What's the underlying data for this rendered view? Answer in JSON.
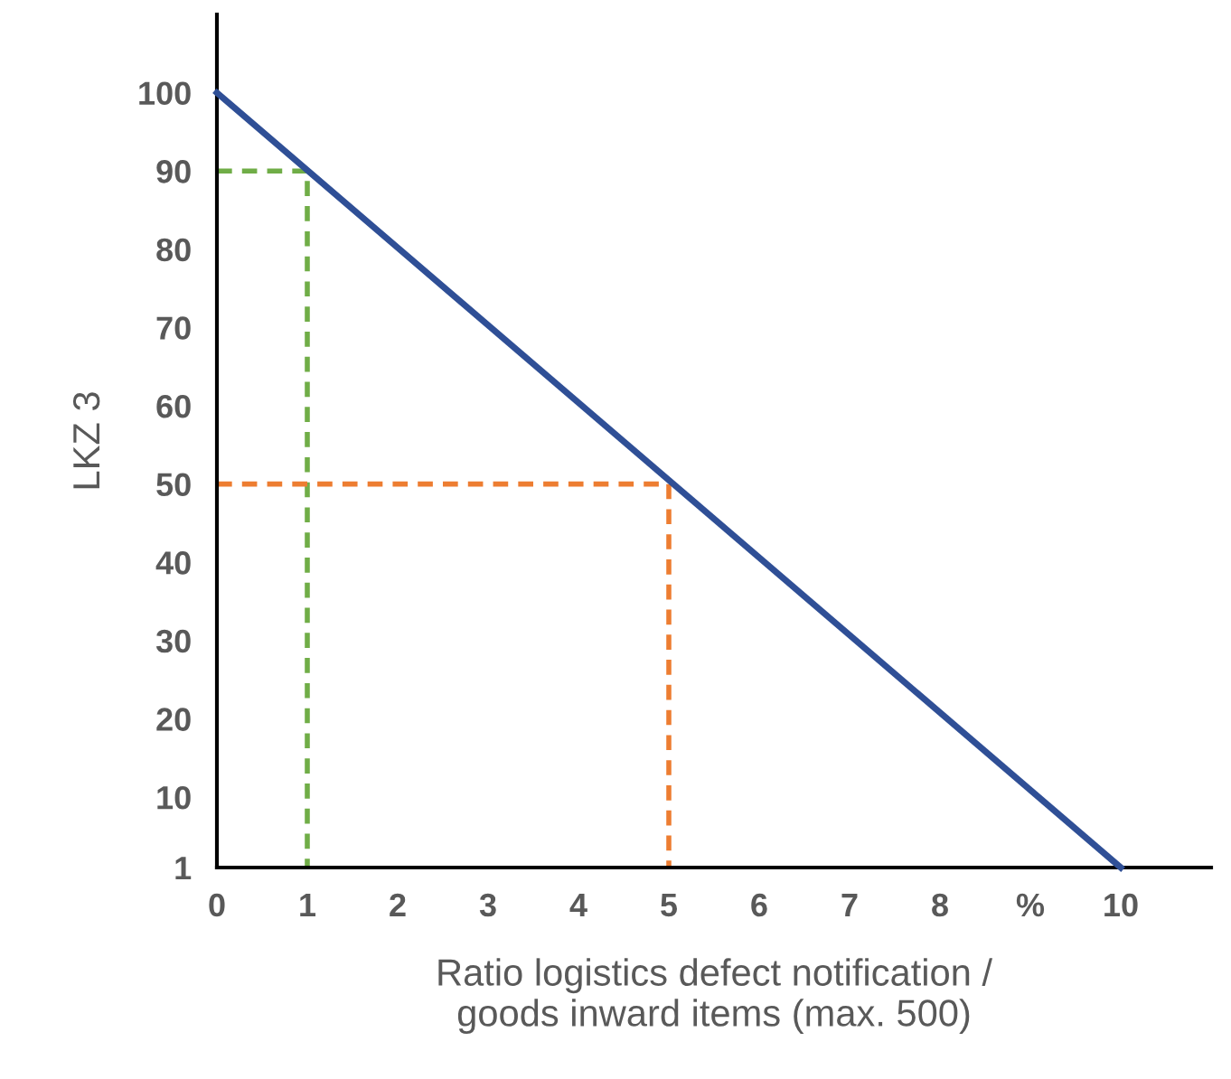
{
  "chart_data": {
    "type": "line",
    "xlabel": "Ratio logistics defect notification /\ngoods inward items (max. 500)",
    "ylabel": "LKZ 3",
    "xlim": [
      0,
      11
    ],
    "xticks": [
      0,
      1,
      2,
      3,
      4,
      5,
      6,
      7,
      8,
      {
        "value": 9,
        "label": "%"
      },
      10
    ],
    "ylim": [
      1,
      110
    ],
    "yticks": [
      1,
      10,
      20,
      30,
      40,
      50,
      60,
      70,
      80,
      90,
      100
    ],
    "grid": false,
    "legend": false,
    "marker": "none",
    "series": [
      {
        "x": [
          0,
          10
        ],
        "values": [
          100,
          1
        ],
        "color": "#2f4f96",
        "line_style": "solid"
      },
      {
        "x": [
          0,
          1,
          1
        ],
        "values": [
          90,
          90,
          1
        ],
        "color": "#70ad47",
        "line_style": "dashed"
      },
      {
        "x": [
          0,
          5,
          5
        ],
        "values": [
          50,
          50,
          1
        ],
        "color": "#ed7d31",
        "line_style": "dashed"
      }
    ]
  }
}
